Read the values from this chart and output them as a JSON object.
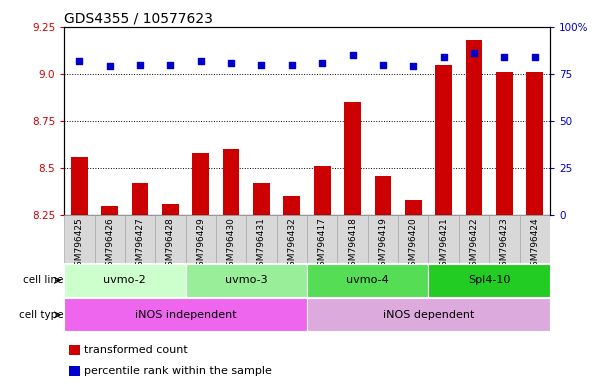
{
  "title": "GDS4355 / 10577623",
  "samples": [
    "GSM796425",
    "GSM796426",
    "GSM796427",
    "GSM796428",
    "GSM796429",
    "GSM796430",
    "GSM796431",
    "GSM796432",
    "GSM796417",
    "GSM796418",
    "GSM796419",
    "GSM796420",
    "GSM796421",
    "GSM796422",
    "GSM796423",
    "GSM796424"
  ],
  "transformed_count": [
    8.56,
    8.3,
    8.42,
    8.31,
    8.58,
    8.6,
    8.42,
    8.35,
    8.51,
    8.85,
    8.46,
    8.33,
    9.05,
    9.18,
    9.01,
    9.01
  ],
  "percentile_rank": [
    82,
    79,
    80,
    80,
    82,
    81,
    80,
    80,
    81,
    85,
    80,
    79,
    84,
    86,
    84,
    84
  ],
  "ylim_left": [
    8.25,
    9.25
  ],
  "ylim_right": [
    0,
    100
  ],
  "yticks_left": [
    8.25,
    8.5,
    8.75,
    9.0,
    9.25
  ],
  "yticks_right": [
    0,
    25,
    50,
    75,
    100
  ],
  "cell_line_groups": [
    {
      "label": "uvmo-2",
      "start": 0,
      "end": 4,
      "color": "#ccffcc"
    },
    {
      "label": "uvmo-3",
      "start": 4,
      "end": 8,
      "color": "#99ee99"
    },
    {
      "label": "uvmo-4",
      "start": 8,
      "end": 12,
      "color": "#55dd55"
    },
    {
      "label": "Spl4-10",
      "start": 12,
      "end": 16,
      "color": "#22cc22"
    }
  ],
  "cell_type_groups": [
    {
      "label": "iNOS independent",
      "start": 0,
      "end": 8,
      "color": "#ee66ee"
    },
    {
      "label": "iNOS dependent",
      "start": 8,
      "end": 16,
      "color": "#ddaadd"
    }
  ],
  "bar_color": "#cc0000",
  "dot_color": "#0000cc",
  "legend_items": [
    {
      "color": "#cc0000",
      "label": "transformed count"
    },
    {
      "color": "#0000cc",
      "label": "percentile rank within the sample"
    }
  ],
  "bar_width": 0.55,
  "title_fontsize": 10,
  "tick_fontsize": 7.5,
  "label_fontsize": 7.5,
  "sample_fontsize": 6.5
}
